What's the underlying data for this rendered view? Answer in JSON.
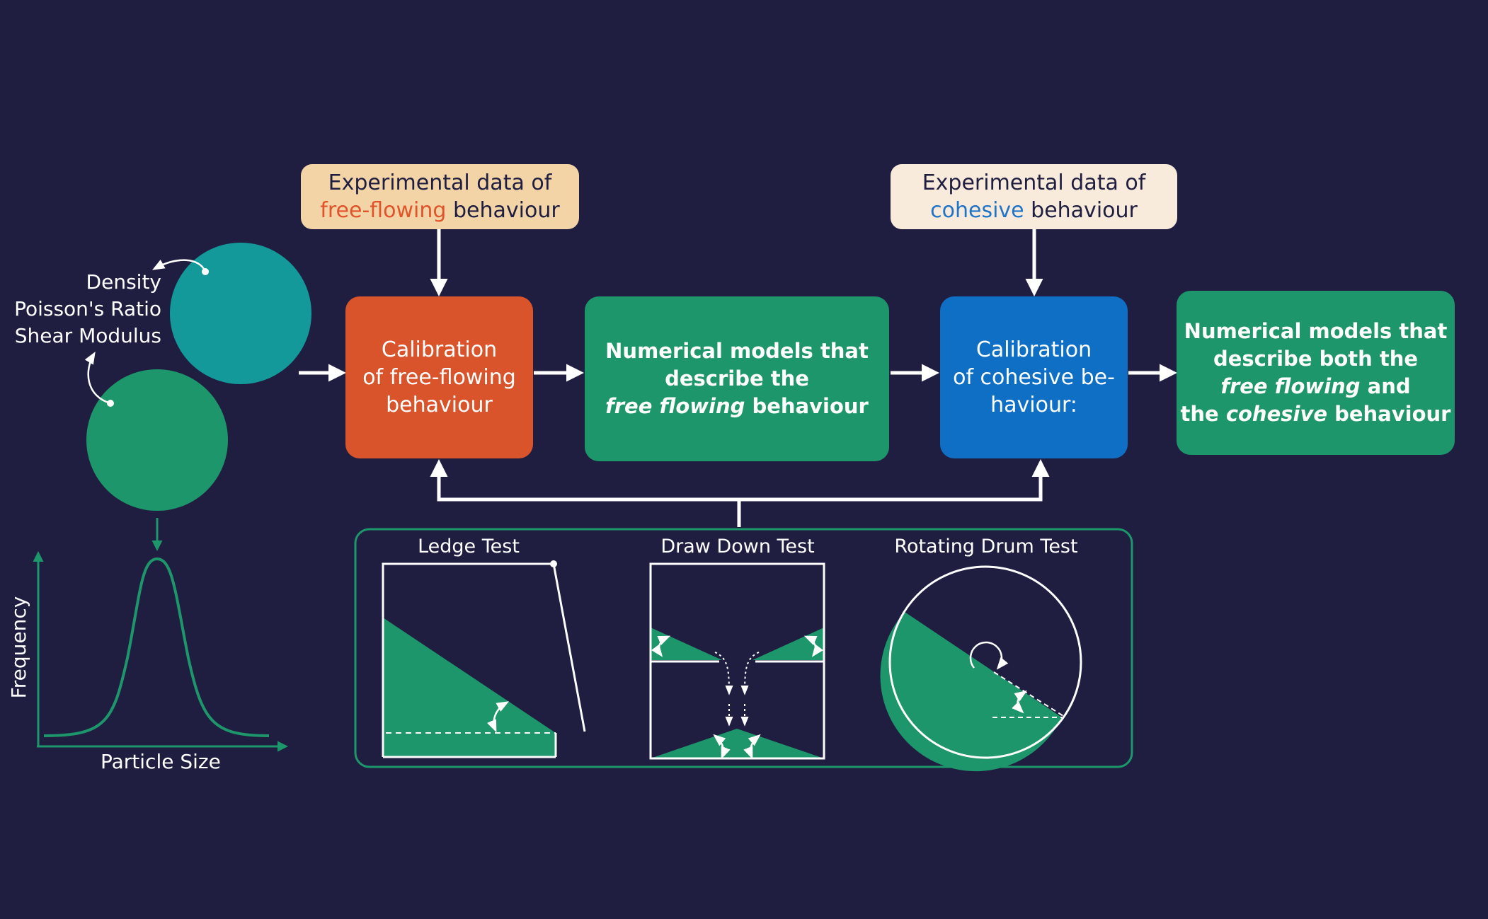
{
  "properties": {
    "lines": [
      "Density",
      "Poisson's Ratio",
      "Shear Modulus"
    ]
  },
  "distribution_plot": {
    "xlabel": "Particle Size",
    "ylabel": "Frequency"
  },
  "experimental_free": {
    "line1": "Experimental data of",
    "highlight": "free-flowing",
    "rest": " behaviour"
  },
  "experimental_cohesive": {
    "line1": "Experimental data of",
    "highlight": "cohesive",
    "rest": " behaviour"
  },
  "calibration_free": {
    "lines": [
      "Calibration",
      "of free-flowing",
      "behaviour"
    ]
  },
  "model_free": {
    "line1": "Numerical models that",
    "line2": "describe the",
    "line3_italic": "free flowing",
    "line3_rest": " behaviour"
  },
  "calibration_cohesive": {
    "lines": [
      "Calibration",
      "of cohesive be-",
      "haviour:"
    ]
  },
  "model_both": {
    "line1": "Numerical models that",
    "line2": "describe both the",
    "line3_italic": "free flowing",
    "line3_rest": " and",
    "line4_pre": "the ",
    "line4_italic": "cohesive",
    "line4_rest": " behaviour"
  },
  "tests": {
    "ledge": "Ledge Test",
    "drawdown": "Draw Down Test",
    "drum": "Rotating Drum Test"
  },
  "colors": {
    "background": "#1f1e41",
    "green": "#1e966b",
    "teal": "#13999a",
    "orange": "#d9542b",
    "blue": "#0f6fc4",
    "peach": "#f3d4a6",
    "cream": "#f8ebdb"
  }
}
